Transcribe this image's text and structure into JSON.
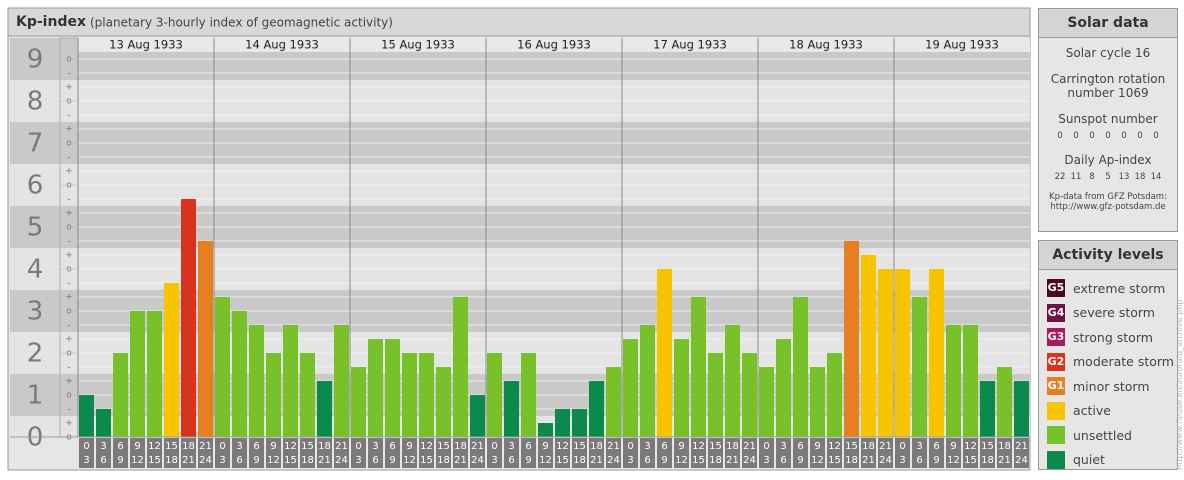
{
  "chart_data": {
    "type": "bar",
    "title": "Kp-index",
    "subtitle": "(planetary 3-hourly index of geomagnetic activity)",
    "days": [
      "13 Aug 1933",
      "14 Aug 1933",
      "15 Aug 1933",
      "16 Aug 1933",
      "17 Aug 1933",
      "18 Aug 1933",
      "19 Aug 1933"
    ],
    "hour_labels": [
      [
        "0",
        "3"
      ],
      [
        "3",
        "6"
      ],
      [
        "6",
        "9"
      ],
      [
        "9",
        "12"
      ],
      [
        "12",
        "15"
      ],
      [
        "15",
        "18"
      ],
      [
        "18",
        "21"
      ],
      [
        "21",
        "24"
      ]
    ],
    "values": [
      1,
      0.667,
      2,
      3,
      3,
      3.667,
      5.667,
      4.667,
      3.333,
      3,
      2.667,
      2,
      2.667,
      2,
      1.333,
      2.667,
      1.667,
      2.333,
      2.333,
      2,
      2,
      1.667,
      3.333,
      1,
      2,
      1.333,
      2,
      0.333,
      0.667,
      0.667,
      1.333,
      1.667,
      2.333,
      2.667,
      4,
      2.333,
      3.333,
      2,
      2.667,
      2,
      1.667,
      2.333,
      3.333,
      1.667,
      2,
      4.667,
      4.333,
      4,
      4,
      3.333,
      4,
      2.667,
      2.667,
      1.333,
      1.667,
      1.333
    ],
    "colors": [
      "#0b8a4c",
      "#0b8a4c",
      "#79c12b",
      "#79c12b",
      "#79c12b",
      "#f7c500",
      "#d9321f",
      "#e67e22",
      "#79c12b",
      "#79c12b",
      "#79c12b",
      "#79c12b",
      "#79c12b",
      "#79c12b",
      "#0b8a4c",
      "#79c12b",
      "#79c12b",
      "#79c12b",
      "#79c12b",
      "#79c12b",
      "#79c12b",
      "#79c12b",
      "#79c12b",
      "#0b8a4c",
      "#79c12b",
      "#0b8a4c",
      "#79c12b",
      "#0b8a4c",
      "#0b8a4c",
      "#0b8a4c",
      "#0b8a4c",
      "#79c12b",
      "#79c12b",
      "#79c12b",
      "#f7c500",
      "#79c12b",
      "#79c12b",
      "#79c12b",
      "#79c12b",
      "#79c12b",
      "#79c12b",
      "#79c12b",
      "#79c12b",
      "#79c12b",
      "#79c12b",
      "#e67e22",
      "#f7c500",
      "#f7c500",
      "#f7c500",
      "#79c12b",
      "#f7c500",
      "#79c12b",
      "#79c12b",
      "#0b8a4c",
      "#79c12b",
      "#0b8a4c"
    ],
    "ylim": [
      0,
      9
    ],
    "yticks": [
      0,
      1,
      2,
      3,
      4,
      5,
      6,
      7,
      8,
      9
    ],
    "minor_ticks": [
      {
        "value": 0,
        "label": "o"
      },
      {
        "value": 0.333,
        "label": "+"
      },
      {
        "value": 0.667,
        "label": "-"
      },
      {
        "value": 1,
        "label": "o"
      },
      {
        "value": 1.333,
        "label": "+"
      },
      {
        "value": 1.667,
        "label": "-"
      },
      {
        "value": 2,
        "label": "o"
      },
      {
        "value": 2.333,
        "label": "+"
      },
      {
        "value": 2.667,
        "label": "-"
      },
      {
        "value": 3,
        "label": "o"
      },
      {
        "value": 3.333,
        "label": "+"
      },
      {
        "value": 3.667,
        "label": "-"
      },
      {
        "value": 4,
        "label": "o"
      },
      {
        "value": 4.333,
        "label": "+"
      },
      {
        "value": 4.667,
        "label": "-"
      },
      {
        "value": 5,
        "label": "o"
      },
      {
        "value": 5.333,
        "label": "+"
      },
      {
        "value": 5.667,
        "label": "-"
      },
      {
        "value": 6,
        "label": "o"
      },
      {
        "value": 6.333,
        "label": "+"
      },
      {
        "value": 6.667,
        "label": "-"
      },
      {
        "value": 7,
        "label": "o"
      },
      {
        "value": 7.333,
        "label": "+"
      },
      {
        "value": 7.667,
        "label": "-"
      },
      {
        "value": 8,
        "label": "o"
      },
      {
        "value": 8.333,
        "label": "+"
      },
      {
        "value": 8.667,
        "label": "-"
      },
      {
        "value": 9,
        "label": "o"
      }
    ],
    "grid": true
  },
  "solar_data": {
    "title": "Solar data",
    "cycle": "Solar cycle 16",
    "carrington": "Carrington rotation number 1069",
    "sunspot_label": "Sunspot number",
    "sunspot_values": [
      0,
      0,
      0,
      0,
      0,
      0,
      0
    ],
    "ap_label": "Daily Ap-index",
    "ap_values": [
      22,
      11,
      8,
      5,
      13,
      18,
      14
    ],
    "source": "Kp-data from GFZ Potsdam:",
    "url": "http://www.gfz-potsdam.de"
  },
  "activity_levels": {
    "title": "Activity levels",
    "levels": [
      {
        "code": "G5",
        "name": "extreme storm",
        "color": "#4a0a22"
      },
      {
        "code": "G4",
        "name": "severe storm",
        "color": "#6e1244"
      },
      {
        "code": "G3",
        "name": "strong storm",
        "color": "#a8185c"
      },
      {
        "code": "G2",
        "name": "moderate storm",
        "color": "#d9321f"
      },
      {
        "code": "G1",
        "name": "minor storm",
        "color": "#e67e22"
      },
      {
        "name": "active",
        "color": "#f7c500"
      },
      {
        "name": "unsettled",
        "color": "#79c12b"
      },
      {
        "name": "quiet",
        "color": "#0b8a4c"
      }
    ]
  },
  "source_url": "http://www.fleuse.eu/aurora/q_archive.php"
}
